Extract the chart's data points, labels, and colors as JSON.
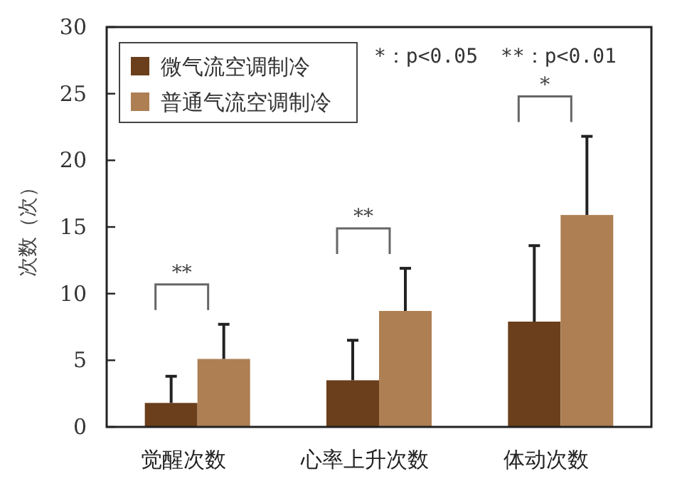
{
  "chart_data": {
    "type": "bar",
    "ylabel": "次数（次）",
    "categories": [
      "觉醒次数",
      "心率上升次数",
      "体动次数"
    ],
    "series": [
      {
        "name": "微气流空调制冷",
        "color": "#6b3f1b",
        "values": [
          1.8,
          3.5,
          7.9
        ],
        "errors": [
          [
            1.8,
            3.8
          ],
          [
            3.5,
            6.5
          ],
          [
            7.9,
            13.6
          ]
        ]
      },
      {
        "name": "普通气流空调制冷",
        "color": "#ad7f52",
        "values": [
          5.1,
          8.7,
          15.9
        ],
        "errors": [
          [
            5.1,
            7.7
          ],
          [
            8.7,
            11.9
          ],
          [
            15.9,
            21.8
          ]
        ]
      }
    ],
    "ylim": [
      0,
      30
    ],
    "yticks": [
      0,
      5,
      10,
      15,
      20,
      25,
      30
    ],
    "legend": "top left",
    "grid": false,
    "annotations": [
      "*：p<0.05",
      "**：p<0.01",
      "**",
      "**",
      "*"
    ]
  }
}
